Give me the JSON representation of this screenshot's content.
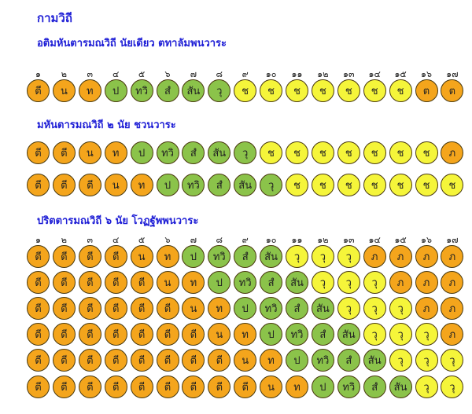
{
  "title": "กามวิถี",
  "colors": {
    "orange": "#f4a51c",
    "green": "#8bc34a",
    "yellow": "#f5f53a",
    "heading": "#1f1fd6"
  },
  "numbers": [
    "๑",
    "๒",
    "๓",
    "๔",
    "๕",
    "๖",
    "๗",
    "๘",
    "๙",
    "๑๐",
    "๑๑",
    "๑๒",
    "๑๓",
    "๑๔",
    "๑๕",
    "๑๖",
    "๑๗"
  ],
  "sections": [
    {
      "heading": "อติมหันตารมณวิถี นัยเดียว ตทาลัมพนวาระ",
      "show_numbers": true,
      "rows": [
        [
          [
            "ตี",
            "o"
          ],
          [
            "น",
            "o"
          ],
          [
            "ท",
            "o"
          ],
          [
            "ป",
            "g"
          ],
          [
            "ทวิ",
            "g"
          ],
          [
            "สํ",
            "g"
          ],
          [
            "สัน",
            "g"
          ],
          [
            "วุ",
            "g"
          ],
          [
            "ช",
            "y"
          ],
          [
            "ช",
            "y"
          ],
          [
            "ช",
            "y"
          ],
          [
            "ช",
            "y"
          ],
          [
            "ช",
            "y"
          ],
          [
            "ช",
            "y"
          ],
          [
            "ช",
            "y"
          ],
          [
            "ต",
            "o"
          ],
          [
            "ต",
            "o"
          ]
        ]
      ]
    },
    {
      "heading": "มหันตารมณวิถี ๒ นัย ชวนวาระ",
      "show_numbers": false,
      "rows": [
        [
          [
            "ตี",
            "o"
          ],
          [
            "ตี",
            "o"
          ],
          [
            "น",
            "o"
          ],
          [
            "ท",
            "o"
          ],
          [
            "ป",
            "g"
          ],
          [
            "ทวิ",
            "g"
          ],
          [
            "สํ",
            "g"
          ],
          [
            "สัน",
            "g"
          ],
          [
            "วุ",
            "g"
          ],
          [
            "ช",
            "y"
          ],
          [
            "ช",
            "y"
          ],
          [
            "ช",
            "y"
          ],
          [
            "ช",
            "y"
          ],
          [
            "ช",
            "y"
          ],
          [
            "ช",
            "y"
          ],
          [
            "ช",
            "y"
          ],
          [
            "ภ",
            "o"
          ]
        ],
        [
          [
            "ตี",
            "o"
          ],
          [
            "ตี",
            "o"
          ],
          [
            "ตี",
            "o"
          ],
          [
            "น",
            "o"
          ],
          [
            "ท",
            "o"
          ],
          [
            "ป",
            "g"
          ],
          [
            "ทวิ",
            "g"
          ],
          [
            "สํ",
            "g"
          ],
          [
            "สัน",
            "g"
          ],
          [
            "วุ",
            "g"
          ],
          [
            "ช",
            "y"
          ],
          [
            "ช",
            "y"
          ],
          [
            "ช",
            "y"
          ],
          [
            "ช",
            "y"
          ],
          [
            "ช",
            "y"
          ],
          [
            "ช",
            "y"
          ],
          [
            "ช",
            "y"
          ]
        ]
      ]
    },
    {
      "heading": "ปริตตารมณวิถี ๖ นัย โวฏฐัพพนวาระ",
      "show_numbers": true,
      "rows": [
        [
          [
            "ตี",
            "o"
          ],
          [
            "ตี",
            "o"
          ],
          [
            "ตี",
            "o"
          ],
          [
            "ตี",
            "o"
          ],
          [
            "น",
            "o"
          ],
          [
            "ท",
            "o"
          ],
          [
            "ป",
            "g"
          ],
          [
            "ทวิ",
            "g"
          ],
          [
            "สํ",
            "g"
          ],
          [
            "สัน",
            "g"
          ],
          [
            "วุ",
            "y"
          ],
          [
            "วุ",
            "y"
          ],
          [
            "วุ",
            "y"
          ],
          [
            "ภ",
            "o"
          ],
          [
            "ภ",
            "o"
          ],
          [
            "ภ",
            "o"
          ],
          [
            "ภ",
            "o"
          ]
        ],
        [
          [
            "ตี",
            "o"
          ],
          [
            "ตี",
            "o"
          ],
          [
            "ตี",
            "o"
          ],
          [
            "ตี",
            "o"
          ],
          [
            "ตี",
            "o"
          ],
          [
            "น",
            "o"
          ],
          [
            "ท",
            "o"
          ],
          [
            "ป",
            "g"
          ],
          [
            "ทวิ",
            "g"
          ],
          [
            "สํ",
            "g"
          ],
          [
            "สัน",
            "g"
          ],
          [
            "วุ",
            "y"
          ],
          [
            "วุ",
            "y"
          ],
          [
            "วุ",
            "y"
          ],
          [
            "ภ",
            "o"
          ],
          [
            "ภ",
            "o"
          ],
          [
            "ภ",
            "o"
          ]
        ],
        [
          [
            "ตี",
            "o"
          ],
          [
            "ตี",
            "o"
          ],
          [
            "ตี",
            "o"
          ],
          [
            "ตี",
            "o"
          ],
          [
            "ตี",
            "o"
          ],
          [
            "ตี",
            "o"
          ],
          [
            "น",
            "o"
          ],
          [
            "ท",
            "o"
          ],
          [
            "ป",
            "g"
          ],
          [
            "ทวิ",
            "g"
          ],
          [
            "สํ",
            "g"
          ],
          [
            "สัน",
            "g"
          ],
          [
            "วุ",
            "y"
          ],
          [
            "วุ",
            "y"
          ],
          [
            "วุ",
            "y"
          ],
          [
            "ภ",
            "o"
          ],
          [
            "ภ",
            "o"
          ]
        ],
        [
          [
            "ตี",
            "o"
          ],
          [
            "ตี",
            "o"
          ],
          [
            "ตี",
            "o"
          ],
          [
            "ตี",
            "o"
          ],
          [
            "ตี",
            "o"
          ],
          [
            "ตี",
            "o"
          ],
          [
            "ตี",
            "o"
          ],
          [
            "น",
            "o"
          ],
          [
            "ท",
            "o"
          ],
          [
            "ป",
            "g"
          ],
          [
            "ทวิ",
            "g"
          ],
          [
            "สํ",
            "g"
          ],
          [
            "สัน",
            "g"
          ],
          [
            "วุ",
            "y"
          ],
          [
            "วุ",
            "y"
          ],
          [
            "วุ",
            "y"
          ],
          [
            "ภ",
            "o"
          ]
        ],
        [
          [
            "ตี",
            "o"
          ],
          [
            "ตี",
            "o"
          ],
          [
            "ตี",
            "o"
          ],
          [
            "ตี",
            "o"
          ],
          [
            "ตี",
            "o"
          ],
          [
            "ตี",
            "o"
          ],
          [
            "ตี",
            "o"
          ],
          [
            "ตี",
            "o"
          ],
          [
            "น",
            "o"
          ],
          [
            "ท",
            "o"
          ],
          [
            "ป",
            "g"
          ],
          [
            "ทวิ",
            "g"
          ],
          [
            "สํ",
            "g"
          ],
          [
            "สัน",
            "g"
          ],
          [
            "วุ",
            "y"
          ],
          [
            "วุ",
            "y"
          ],
          [
            "วุ",
            "y"
          ]
        ],
        [
          [
            "ตี",
            "o"
          ],
          [
            "ตี",
            "o"
          ],
          [
            "ตี",
            "o"
          ],
          [
            "ตี",
            "o"
          ],
          [
            "ตี",
            "o"
          ],
          [
            "ตี",
            "o"
          ],
          [
            "ตี",
            "o"
          ],
          [
            "ตี",
            "o"
          ],
          [
            "ตี",
            "o"
          ],
          [
            "น",
            "o"
          ],
          [
            "ท",
            "o"
          ],
          [
            "ป",
            "g"
          ],
          [
            "ทวิ",
            "g"
          ],
          [
            "สํ",
            "g"
          ],
          [
            "สัน",
            "g"
          ],
          [
            "วุ",
            "y"
          ],
          [
            "วุ",
            "y"
          ]
        ]
      ]
    }
  ]
}
